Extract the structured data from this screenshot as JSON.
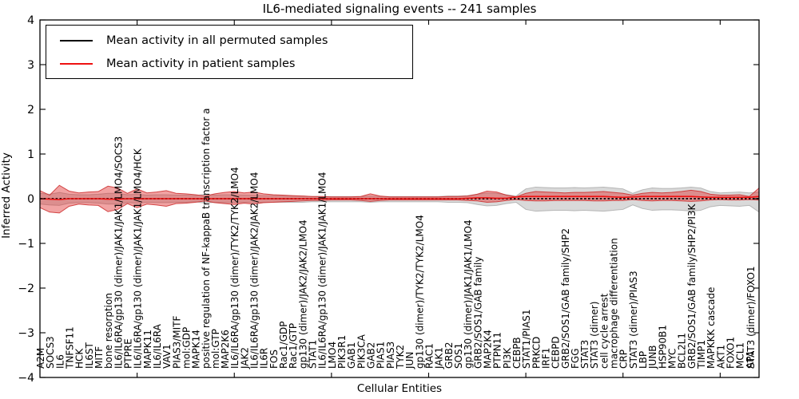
{
  "chart_data": {
    "type": "line",
    "title": "IL6-mediated signaling events -- 241 samples",
    "xlabel": "Cellular Entities",
    "ylabel": "Inferred Activity",
    "ylim": [
      -4,
      4
    ],
    "grid": false,
    "legend_position": "upper left",
    "y_ticks": {
      "values": [
        4,
        3,
        2,
        1,
        0,
        -1,
        -2,
        -3,
        -4
      ],
      "labels": [
        "4",
        "3",
        "2",
        "1",
        "0",
        "−1",
        "−2",
        "−3",
        "−4"
      ]
    },
    "x_major_tick_indices": [
      10,
      20,
      30,
      40,
      50,
      60,
      70
    ],
    "categories": [
      "A2M",
      "SOCS3",
      "IL6",
      "TNFSF11",
      "HCK",
      "IL6ST",
      "MITF",
      "bone resorption",
      "IL6/IL6RA/gp130 (dimer)/JAK1/JAK1/LMO4/SOCS3",
      "PTPRE",
      "IL6/IL6RA/gp130 (dimer)/JAK1/JAK1/LMO4/HCK",
      "MAPK11",
      "IL6/IL6RA",
      "VAV1",
      "PIAS3/MITF",
      "mol:GDP",
      "MAPK14",
      "positive regulation of NF-kappaB transcription factor a",
      "mol:GTP",
      "MAP2K6",
      "IL6/IL6RA/gp130 (dimer)/TYK2/TYK2/LMO4",
      "JAK2",
      "IL6/IL6RA/gp130 (dimer)/JAK2/JAK2/LMO4",
      "IL6R",
      "FOS",
      "Rac1/GDP",
      "Rac1/GTP",
      "gp130 (dimer)/JAK2/JAK2/LMO4",
      "STAT1",
      "IL6/IL6RA/gp130 (dimer)/JAK1/JAK1/LMO4",
      "LMO4",
      "PIK3R1",
      "GAB1",
      "PIK3CA",
      "GAB2",
      "PIAS1",
      "PIAS3",
      "TYK2",
      "JUN",
      "gp130 (dimer)/TYK2/TYK2/LMO4",
      "RAC1",
      "JAK1",
      "GRB2",
      "SOS1",
      "gp130 (dimer)/JAK1/JAK1/LMO4",
      "GRB2/SOS1/GAB family",
      "MAP2K4",
      "PTPN11",
      "PI3K",
      "CEBPB",
      "STAT1/PIAS1",
      "PRKCD",
      "IRF1",
      "CEBPD",
      "GRB2/SOS1/GAB family/SHP2",
      "FGG",
      "STAT3",
      "STAT3 (dimer)",
      "cell cycle arrest",
      "macrophage differentiation",
      "CRP",
      "STAT3 (dimer)/PIAS3",
      "LBP",
      "JUNB",
      "HSP90B1",
      "MYC",
      "BCL2L1",
      "GRB2/SOS1/GAB family/SHP2/PI3K",
      "TIMP1",
      "MAPKKK cascade",
      "AKT1",
      "FOXO1",
      "MCL1",
      "AP1",
      "STAT3 (dimer)/FOXO1"
    ],
    "series": [
      {
        "id": "permuted-band",
        "name": "Permuted samples mean ± std band",
        "type": "band",
        "fill": "rgba(130,130,130,0.30)",
        "edge": "rgba(130,130,130,0.50)",
        "upper": [
          0.12,
          0.1,
          0.14,
          0.1,
          0.09,
          0.09,
          0.1,
          0.12,
          0.12,
          0.09,
          0.1,
          0.08,
          0.09,
          0.09,
          0.08,
          0.08,
          0.07,
          0.1,
          0.08,
          0.09,
          0.09,
          0.08,
          0.08,
          0.07,
          0.07,
          0.06,
          0.06,
          0.06,
          0.05,
          0.05,
          0.05,
          0.05,
          0.05,
          0.05,
          0.06,
          0.05,
          0.05,
          0.05,
          0.05,
          0.05,
          0.05,
          0.05,
          0.06,
          0.06,
          0.07,
          0.1,
          0.13,
          0.12,
          0.09,
          0.06,
          0.22,
          0.26,
          0.25,
          0.24,
          0.24,
          0.25,
          0.24,
          0.25,
          0.26,
          0.24,
          0.22,
          0.12,
          0.2,
          0.24,
          0.23,
          0.23,
          0.24,
          0.26,
          0.24,
          0.16,
          0.13,
          0.14,
          0.15,
          0.13,
          0.15
        ],
        "lower": [
          -0.12,
          -0.14,
          -0.15,
          -0.1,
          -0.09,
          -0.09,
          -0.1,
          -0.12,
          -0.12,
          -0.09,
          -0.1,
          -0.08,
          -0.09,
          -0.09,
          -0.08,
          -0.08,
          -0.07,
          -0.1,
          -0.08,
          -0.09,
          -0.09,
          -0.08,
          -0.08,
          -0.08,
          -0.08,
          -0.08,
          -0.08,
          -0.08,
          -0.07,
          -0.07,
          -0.07,
          -0.07,
          -0.07,
          -0.07,
          -0.08,
          -0.07,
          -0.07,
          -0.07,
          -0.07,
          -0.07,
          -0.07,
          -0.07,
          -0.08,
          -0.08,
          -0.09,
          -0.13,
          -0.16,
          -0.15,
          -0.11,
          -0.08,
          -0.24,
          -0.28,
          -0.27,
          -0.26,
          -0.26,
          -0.27,
          -0.26,
          -0.27,
          -0.28,
          -0.26,
          -0.24,
          -0.14,
          -0.22,
          -0.26,
          -0.25,
          -0.25,
          -0.26,
          -0.28,
          -0.26,
          -0.18,
          -0.15,
          -0.16,
          -0.17,
          -0.15,
          -0.3
        ]
      },
      {
        "id": "patient-band",
        "name": "Patient samples mean ± std band",
        "type": "band",
        "fill": "rgba(225,50,50,0.45)",
        "edge": "rgba(205,45,45,0.85)",
        "upper": [
          0.18,
          0.08,
          0.3,
          0.17,
          0.13,
          0.15,
          0.16,
          0.28,
          0.24,
          0.12,
          0.22,
          0.13,
          0.15,
          0.18,
          0.12,
          0.11,
          0.09,
          0.06,
          0.11,
          0.14,
          0.16,
          0.13,
          0.15,
          0.11,
          0.09,
          0.08,
          0.07,
          0.06,
          0.05,
          0.05,
          0.04,
          0.04,
          0.04,
          0.05,
          0.11,
          0.06,
          0.04,
          0.04,
          0.04,
          0.04,
          0.04,
          0.04,
          0.05,
          0.05,
          0.06,
          0.1,
          0.17,
          0.15,
          0.08,
          0.04,
          0.12,
          0.16,
          0.15,
          0.14,
          0.13,
          0.14,
          0.14,
          0.15,
          0.16,
          0.14,
          0.12,
          0.08,
          0.12,
          0.14,
          0.13,
          0.14,
          0.16,
          0.19,
          0.16,
          0.1,
          0.08,
          0.08,
          0.09,
          0.05,
          0.24
        ],
        "lower": [
          -0.2,
          -0.3,
          -0.32,
          -0.17,
          -0.12,
          -0.14,
          -0.15,
          -0.29,
          -0.24,
          -0.11,
          -0.2,
          -0.12,
          -0.14,
          -0.17,
          -0.11,
          -0.1,
          -0.08,
          -0.05,
          -0.09,
          -0.11,
          -0.13,
          -0.1,
          -0.12,
          -0.09,
          -0.08,
          -0.07,
          -0.06,
          -0.05,
          -0.04,
          -0.04,
          -0.03,
          -0.03,
          -0.03,
          -0.04,
          -0.06,
          -0.04,
          -0.03,
          -0.03,
          -0.03,
          -0.03,
          -0.03,
          -0.03,
          -0.03,
          -0.03,
          -0.04,
          -0.05,
          -0.08,
          -0.07,
          -0.04,
          -0.02,
          -0.04,
          -0.05,
          -0.05,
          -0.04,
          -0.04,
          -0.04,
          -0.04,
          -0.05,
          -0.05,
          -0.04,
          -0.04,
          -0.02,
          -0.04,
          -0.05,
          -0.04,
          -0.04,
          -0.05,
          -0.06,
          -0.05,
          -0.03,
          -0.02,
          -0.03,
          -0.03,
          -0.02,
          -0.03
        ]
      },
      {
        "id": "permuted-mean",
        "name": "Mean activity in all permuted samples",
        "type": "line",
        "color": "#000000",
        "width": 1.7,
        "dash": "2.6 2.3",
        "constant_value": 0
      },
      {
        "id": "patient-mean",
        "name": "Mean activity in patient samples",
        "type": "line",
        "color": "#ee1111",
        "width": 1.6,
        "values": [
          0,
          -0.01,
          -0.02,
          0,
          0,
          0,
          0,
          -0.01,
          -0.01,
          0,
          0,
          0,
          0,
          0,
          0,
          0,
          0,
          0,
          0,
          0,
          0,
          0,
          0,
          0,
          0,
          0,
          0,
          0,
          0,
          0,
          0,
          0,
          0,
          0,
          0,
          0,
          0,
          0,
          0,
          0,
          0,
          0,
          0,
          0,
          0.01,
          0.02,
          0.02,
          0.01,
          0.01,
          0.04,
          0.05,
          0.05,
          0.05,
          0.05,
          0.05,
          0.05,
          0.05,
          0.05,
          0.05,
          0.04,
          0.03,
          0.04,
          0.05,
          0.05,
          0.05,
          0.05,
          0.05,
          0.05,
          0.04,
          0.03,
          0.03,
          0.03,
          0.03,
          0.03,
          0.05
        ]
      }
    ],
    "colors": {
      "frame": "#000000",
      "patient_line": "#ee1111",
      "permuted_line": "#000000",
      "patient_band_fill": "rgba(225,50,50,0.45)",
      "permuted_band_fill": "rgba(130,130,130,0.30)"
    }
  }
}
